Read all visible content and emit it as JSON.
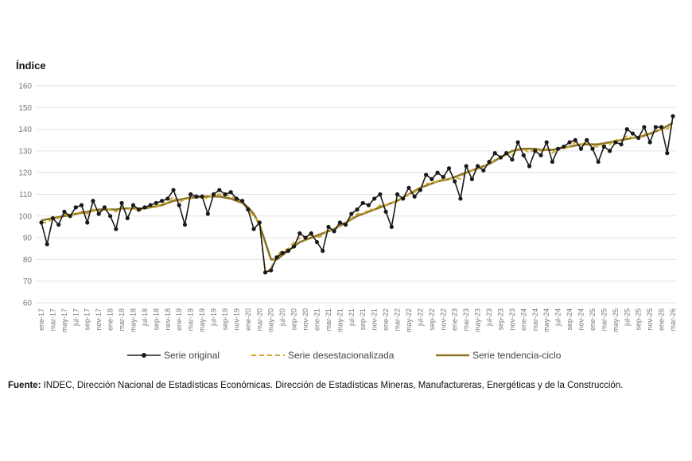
{
  "chart_data": {
    "type": "line",
    "y_axis_label": "Índice",
    "categories": [
      "ene-17",
      null,
      "mar-17",
      null,
      "may-17",
      null,
      "jul-17",
      null,
      "sep-17",
      null,
      "nov-17",
      null,
      "ene-18",
      null,
      "mar-18",
      null,
      "may-18",
      null,
      "jul-18",
      null,
      "sep-18",
      null,
      "nov-18",
      null,
      "ene-19",
      null,
      "mar-19",
      null,
      "may-19",
      null,
      "jul-19",
      null,
      "sep-19",
      null,
      "nov-19",
      null,
      "ene-20",
      null,
      "mar-20",
      null,
      "may-20",
      null,
      "jul-20",
      null,
      "sep-20",
      null,
      "nov-20",
      null,
      "ene-21",
      null,
      "mar-21",
      null,
      "may-21",
      null,
      "jul-21",
      null,
      "sep-21",
      null,
      "nov-21",
      null,
      "ene-22",
      null,
      "mar-22",
      null,
      "may-22",
      null,
      "jul-22",
      null,
      "sep-22",
      null,
      "nov-22",
      null,
      "ene-23",
      null,
      "mar-23",
      null,
      "may-23",
      null,
      "jul-23",
      null,
      "sep-23",
      null,
      "nov-23",
      null,
      "ene-24",
      null,
      "mar-24",
      null,
      "may-24",
      null,
      "jul-24",
      null,
      "sep-24",
      null,
      "nov-24",
      null,
      "ene-25",
      null,
      "mar-25",
      null,
      "may-25",
      null,
      "jul-25",
      null,
      "sep-25",
      null,
      "nov-25",
      null,
      "ene-26",
      null,
      "mar-26"
    ],
    "series": [
      {
        "name": "Serie original",
        "color": "#1a1a1a",
        "style": "solid-markers",
        "values": [
          97,
          87,
          99,
          96,
          102,
          100,
          104,
          105,
          97,
          107,
          101,
          104,
          100,
          94,
          106,
          99,
          105,
          103,
          104,
          105,
          106,
          107,
          108,
          112,
          105,
          96,
          110,
          109,
          109,
          101,
          110,
          112,
          110,
          111,
          108,
          107,
          103,
          94,
          97,
          74,
          75,
          81,
          83,
          84,
          86,
          92,
          90,
          92,
          88,
          84,
          95,
          93,
          97,
          96,
          101,
          103,
          106,
          105,
          108,
          110,
          102,
          95,
          110,
          108,
          113,
          109,
          112,
          119,
          117,
          120,
          118,
          122,
          116,
          108,
          123,
          117,
          123,
          121,
          125,
          129,
          127,
          129,
          126,
          134,
          128,
          123,
          130,
          128,
          134,
          125,
          131,
          132,
          134,
          135,
          131,
          135,
          131,
          125,
          132,
          130,
          134,
          133,
          140,
          138,
          136,
          141,
          134,
          141,
          141,
          129,
          146
        ]
      },
      {
        "name": "Serie desestacionalizada",
        "color": "#d1a62a",
        "style": "dashed",
        "values": [
          97,
          97,
          99,
          99,
          101,
          100,
          101,
          102,
          101,
          103,
          102,
          103,
          103,
          102,
          104,
          103,
          104,
          102,
          104,
          104,
          104,
          106,
          106,
          109,
          106,
          108,
          108,
          109,
          109,
          108,
          110,
          110,
          110,
          109,
          108,
          106,
          103,
          100,
          97,
          74,
          76,
          82,
          84,
          85,
          88,
          90,
          89,
          91,
          90,
          91,
          94,
          93,
          96,
          97,
          99,
          101,
          101,
          103,
          103,
          105,
          105,
          106,
          107,
          108,
          110,
          111,
          113,
          115,
          115,
          116,
          117,
          117,
          118,
          117,
          120,
          121,
          122,
          123,
          124,
          126,
          127,
          129,
          128,
          131,
          131,
          129,
          131,
          130,
          131,
          129,
          131,
          131,
          132,
          134,
          133,
          134,
          132,
          132,
          133,
          133,
          135,
          135,
          137,
          136,
          136,
          138,
          137,
          139,
          140,
          140,
          143
        ]
      },
      {
        "name": "Serie tendencia-ciclo",
        "color": "#8c7424",
        "style": "thick",
        "values": [
          98,
          98.5,
          99,
          99.5,
          100,
          100.5,
          101,
          101.5,
          102,
          102.5,
          103,
          103,
          103,
          103,
          103.5,
          103.5,
          103.5,
          103.5,
          103.5,
          104,
          104.5,
          105,
          106,
          107,
          107.5,
          108,
          108.5,
          108.5,
          109,
          109,
          109,
          109,
          108.5,
          108,
          107,
          106,
          104,
          101,
          96,
          88,
          80,
          80,
          82,
          84,
          86,
          88,
          89,
          90,
          91,
          92,
          93,
          94,
          95.5,
          97,
          98.5,
          100,
          101,
          102,
          103,
          104,
          105,
          106,
          107,
          108.5,
          110,
          111.5,
          113,
          114,
          115,
          116,
          116.5,
          117,
          118,
          119,
          120,
          121,
          122,
          123,
          124,
          125.5,
          127,
          128.5,
          130,
          130.5,
          131,
          131,
          131,
          130.5,
          130.5,
          130.5,
          131,
          131.5,
          132,
          132.5,
          133,
          133,
          133,
          133,
          133.5,
          134,
          134.5,
          135,
          135.5,
          136,
          136.5,
          137,
          138,
          139,
          140,
          141.5,
          143
        ]
      }
    ],
    "ylim": [
      60,
      160
    ],
    "yticks": [
      60,
      70,
      80,
      90,
      100,
      110,
      120,
      130,
      140,
      150,
      160
    ],
    "grid": true,
    "legend": "bottom",
    "source_label": "Fuente:",
    "source_text": "INDEC, Dirección Nacional de Estadísticas Económicas. Dirección de Estadísticas Mineras, Manufactureras, Energéticas y de la Construcción."
  }
}
